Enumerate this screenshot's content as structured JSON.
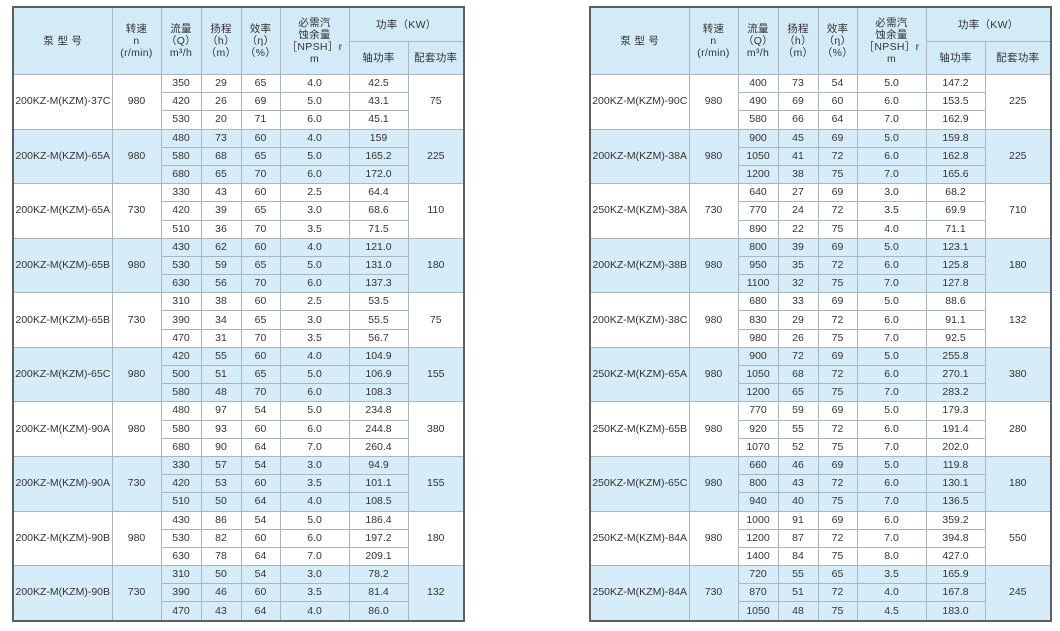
{
  "header": {
    "model": "泵 型 号",
    "speed": [
      "转速",
      "n",
      "(r/min)"
    ],
    "flow": [
      "流量",
      "（Q）",
      "m³/h"
    ],
    "head": [
      "扬程",
      "（h）",
      "（m）"
    ],
    "efficiency": [
      "效率",
      "（η）",
      "（%）"
    ],
    "npsh": [
      "必需汽",
      "蚀余量",
      "［NPSH］r",
      "m"
    ],
    "power": "功率（KW）",
    "shaft_power": "轴功率",
    "motor_power": "配套功率"
  },
  "colors": {
    "header_bg": "#d3ebf7",
    "alt_row_bg": "#d6edf9",
    "border": "#a8b6c0",
    "outer_border": "#5a5f63"
  },
  "tables": [
    {
      "groups": [
        {
          "model": "200KZ-M(KZM)-37C",
          "speed": "980",
          "motor": "75",
          "rows": [
            [
              "350",
              "29",
              "65",
              "4.0",
              "42.5"
            ],
            [
              "420",
              "26",
              "69",
              "5.0",
              "43.1"
            ],
            [
              "530",
              "20",
              "71",
              "6.0",
              "45.1"
            ]
          ]
        },
        {
          "model": "200KZ-M(KZM)-65A",
          "speed": "980",
          "motor": "225",
          "rows": [
            [
              "480",
              "73",
              "60",
              "4.0",
              "159"
            ],
            [
              "580",
              "68",
              "65",
              "5.0",
              "165.2"
            ],
            [
              "680",
              "65",
              "70",
              "6.0",
              "172.0"
            ]
          ]
        },
        {
          "model": "200KZ-M(KZM)-65A",
          "speed": "730",
          "motor": "110",
          "rows": [
            [
              "330",
              "43",
              "60",
              "2.5",
              "64.4"
            ],
            [
              "420",
              "39",
              "65",
              "3.0",
              "68.6"
            ],
            [
              "510",
              "36",
              "70",
              "3.5",
              "71.5"
            ]
          ]
        },
        {
          "model": "200KZ-M(KZM)-65B",
          "speed": "980",
          "motor": "180",
          "rows": [
            [
              "430",
              "62",
              "60",
              "4.0",
              "121.0"
            ],
            [
              "530",
              "59",
              "65",
              "5.0",
              "131.0"
            ],
            [
              "630",
              "56",
              "70",
              "6.0",
              "137.3"
            ]
          ]
        },
        {
          "model": "200KZ-M(KZM)-65B",
          "speed": "730",
          "motor": "75",
          "rows": [
            [
              "310",
              "38",
              "60",
              "2.5",
              "53.5"
            ],
            [
              "390",
              "34",
              "65",
              "3.0",
              "55.5"
            ],
            [
              "470",
              "31",
              "70",
              "3.5",
              "56.7"
            ]
          ]
        },
        {
          "model": "200KZ-M(KZM)-65C",
          "speed": "980",
          "motor": "155",
          "rows": [
            [
              "420",
              "55",
              "60",
              "4.0",
              "104.9"
            ],
            [
              "500",
              "51",
              "65",
              "5.0",
              "106.9"
            ],
            [
              "580",
              "48",
              "70",
              "6.0",
              "108.3"
            ]
          ]
        },
        {
          "model": "200KZ-M(KZM)-90A",
          "speed": "980",
          "motor": "380",
          "rows": [
            [
              "480",
              "97",
              "54",
              "5.0",
              "234.8"
            ],
            [
              "580",
              "93",
              "60",
              "6.0",
              "244.8"
            ],
            [
              "680",
              "90",
              "64",
              "7.0",
              "260.4"
            ]
          ]
        },
        {
          "model": "200KZ-M(KZM)-90A",
          "speed": "730",
          "motor": "155",
          "rows": [
            [
              "330",
              "57",
              "54",
              "3.0",
              "94.9"
            ],
            [
              "420",
              "53",
              "60",
              "3.5",
              "101.1"
            ],
            [
              "510",
              "50",
              "64",
              "4.0",
              "108.5"
            ]
          ]
        },
        {
          "model": "200KZ-M(KZM)-90B",
          "speed": "980",
          "motor": "180",
          "rows": [
            [
              "430",
              "86",
              "54",
              "5.0",
              "186.4"
            ],
            [
              "530",
              "82",
              "60",
              "6.0",
              "197.2"
            ],
            [
              "630",
              "78",
              "64",
              "7.0",
              "209.1"
            ]
          ]
        },
        {
          "model": "200KZ-M(KZM)-90B",
          "speed": "730",
          "motor": "132",
          "rows": [
            [
              "310",
              "50",
              "54",
              "3.0",
              "78.2"
            ],
            [
              "390",
              "46",
              "60",
              "3.5",
              "81.4"
            ],
            [
              "470",
              "43",
              "64",
              "4.0",
              "86.0"
            ]
          ]
        }
      ]
    },
    {
      "groups": [
        {
          "model": "200KZ-M(KZM)-90C",
          "speed": "980",
          "motor": "225",
          "rows": [
            [
              "400",
              "73",
              "54",
              "5.0",
              "147.2"
            ],
            [
              "490",
              "69",
              "60",
              "6.0",
              "153.5"
            ],
            [
              "580",
              "66",
              "64",
              "7.0",
              "162.9"
            ]
          ]
        },
        {
          "model": "200KZ-M(KZM)-38A",
          "speed": "980",
          "motor": "225",
          "rows": [
            [
              "900",
              "45",
              "69",
              "5.0",
              "159.8"
            ],
            [
              "1050",
              "41",
              "72",
              "6.0",
              "162.8"
            ],
            [
              "1200",
              "38",
              "75",
              "7.0",
              "165.6"
            ]
          ]
        },
        {
          "model": "250KZ-M(KZM)-38A",
          "speed": "730",
          "motor": "710",
          "rows": [
            [
              "640",
              "27",
              "69",
              "3.0",
              "68.2"
            ],
            [
              "770",
              "24",
              "72",
              "3.5",
              "69.9"
            ],
            [
              "890",
              "22",
              "75",
              "4.0",
              "71.1"
            ]
          ]
        },
        {
          "model": "200KZ-M(KZM)-38B",
          "speed": "980",
          "motor": "180",
          "rows": [
            [
              "800",
              "39",
              "69",
              "5.0",
              "123.1"
            ],
            [
              "950",
              "35",
              "72",
              "6.0",
              "125.8"
            ],
            [
              "1100",
              "32",
              "75",
              "7.0",
              "127.8"
            ]
          ]
        },
        {
          "model": "200KZ-M(KZM)-38C",
          "speed": "980",
          "motor": "132",
          "rows": [
            [
              "680",
              "33",
              "69",
              "5.0",
              "88.6"
            ],
            [
              "830",
              "29",
              "72",
              "6.0",
              "91.1"
            ],
            [
              "980",
              "26",
              "75",
              "7.0",
              "92.5"
            ]
          ]
        },
        {
          "model": "250KZ-M(KZM)-65A",
          "speed": "980",
          "motor": "380",
          "rows": [
            [
              "900",
              "72",
              "69",
              "5.0",
              "255.8"
            ],
            [
              "1050",
              "68",
              "72",
              "6.0",
              "270.1"
            ],
            [
              "1200",
              "65",
              "75",
              "7.0",
              "283.2"
            ]
          ]
        },
        {
          "model": "250KZ-M(KZM)-65B",
          "speed": "980",
          "motor": "280",
          "rows": [
            [
              "770",
              "59",
              "69",
              "5.0",
              "179.3"
            ],
            [
              "920",
              "55",
              "72",
              "6.0",
              "191.4"
            ],
            [
              "1070",
              "52",
              "75",
              "7.0",
              "202.0"
            ]
          ]
        },
        {
          "model": "250KZ-M(KZM)-65C",
          "speed": "980",
          "motor": "180",
          "rows": [
            [
              "660",
              "46",
              "69",
              "5.0",
              "119.8"
            ],
            [
              "800",
              "43",
              "72",
              "6.0",
              "130.1"
            ],
            [
              "940",
              "40",
              "75",
              "7.0",
              "136.5"
            ]
          ]
        },
        {
          "model": "250KZ-M(KZM)-84A",
          "speed": "980",
          "motor": "550",
          "rows": [
            [
              "1000",
              "91",
              "69",
              "6.0",
              "359.2"
            ],
            [
              "1200",
              "87",
              "72",
              "7.0",
              "394.8"
            ],
            [
              "1400",
              "84",
              "75",
              "8.0",
              "427.0"
            ]
          ]
        },
        {
          "model": "250KZ-M(KZM)-84A",
          "speed": "730",
          "motor": "245",
          "rows": [
            [
              "720",
              "55",
              "65",
              "3.5",
              "165.9"
            ],
            [
              "870",
              "51",
              "72",
              "4.0",
              "167.8"
            ],
            [
              "1050",
              "48",
              "75",
              "4.5",
              "183.0"
            ]
          ]
        }
      ]
    }
  ]
}
